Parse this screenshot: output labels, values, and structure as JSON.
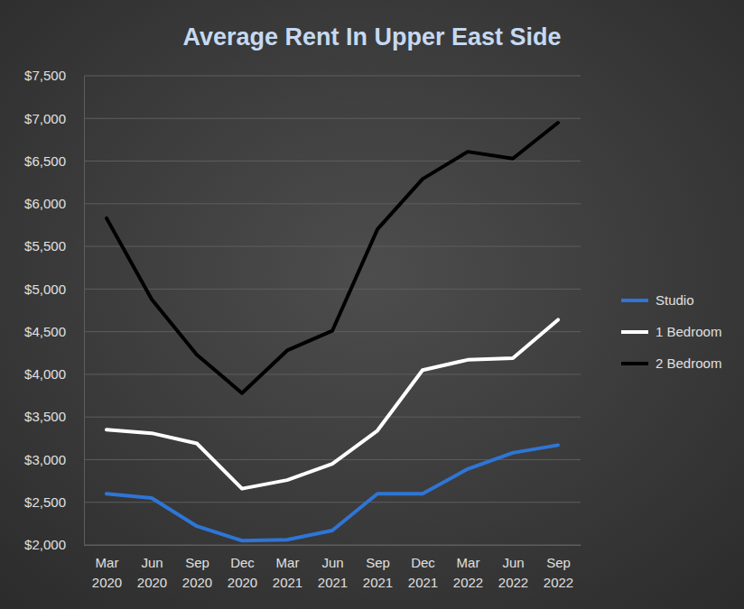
{
  "chart_data": {
    "type": "line",
    "title": "Average Rent In Upper East Side",
    "categories": [
      "Mar 2020",
      "Jun 2020",
      "Sep 2020",
      "Dec 2020",
      "Mar 2021",
      "Jun 2021",
      "Sep 2021",
      "Dec 2021",
      "Mar 2022",
      "Jun 2022",
      "Sep 2022"
    ],
    "series": [
      {
        "name": "Studio",
        "color": "#2e75d6",
        "values": [
          2600,
          2550,
          2220,
          2050,
          2060,
          2170,
          2600,
          2600,
          2890,
          3080,
          3170
        ]
      },
      {
        "name": "1 Bedroom",
        "color": "#ffffff",
        "values": [
          3350,
          3310,
          3190,
          2660,
          2760,
          2950,
          3340,
          4050,
          4170,
          4190,
          4640
        ]
      },
      {
        "name": "2 Bedroom",
        "color": "#000000",
        "values": [
          5830,
          4880,
          4230,
          3780,
          4280,
          4510,
          5700,
          6290,
          6610,
          6530,
          6950
        ]
      }
    ],
    "ylim": [
      2000,
      7500
    ],
    "yticks": [
      {
        "value": 2000,
        "label": "$2,000"
      },
      {
        "value": 2500,
        "label": "$2,500"
      },
      {
        "value": 3000,
        "label": "$3,000"
      },
      {
        "value": 3500,
        "label": "$3,500"
      },
      {
        "value": 4000,
        "label": "$4,000"
      },
      {
        "value": 4500,
        "label": "$4,500"
      },
      {
        "value": 5000,
        "label": "$5,000"
      },
      {
        "value": 5500,
        "label": "$5,500"
      },
      {
        "value": 6000,
        "label": "$6,000"
      },
      {
        "value": 6500,
        "label": "$6,500"
      },
      {
        "value": 7000,
        "label": "$7,000"
      },
      {
        "value": 7500,
        "label": "$7,500"
      }
    ],
    "grid": true,
    "legend": "right"
  }
}
